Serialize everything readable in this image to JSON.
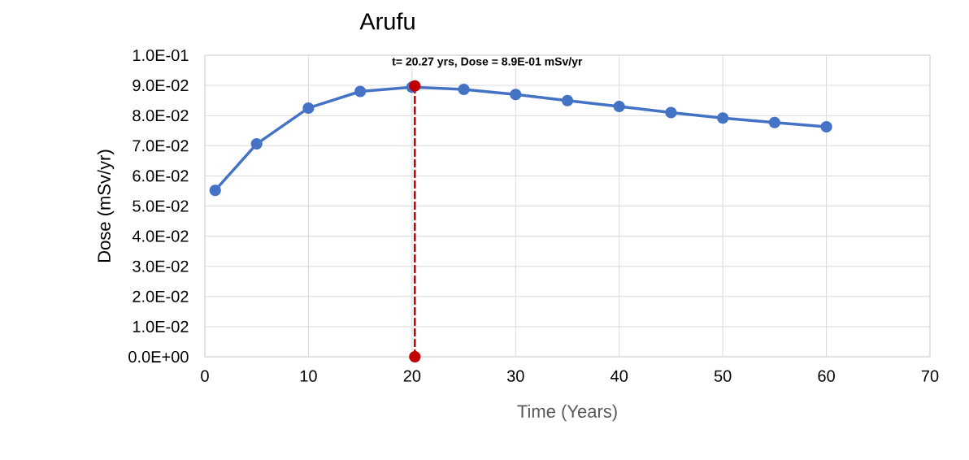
{
  "chart_data": {
    "type": "line",
    "title": "Arufu",
    "xlabel": "Time (Years)",
    "ylabel": "Dose (mSv/yr)",
    "series": [
      {
        "color": "#4472c4",
        "x": [
          1,
          5,
          10,
          15,
          20,
          25,
          30,
          35,
          40,
          45,
          50,
          55,
          60
        ],
        "values": [
          0.0552,
          0.0706,
          0.0825,
          0.088,
          0.0894,
          0.0887,
          0.087,
          0.085,
          0.083,
          0.081,
          0.0792,
          0.0777,
          0.0763
        ]
      },
      {
        "color": "#c00000",
        "x": [
          20.27,
          20.27
        ],
        "values": [
          0,
          0.0898
        ],
        "line_style": "dashed"
      }
    ],
    "annotations": [
      {
        "text": "t= 20.27 yrs, Dose = 8.9E-01 mSv/yr",
        "x": 20.27,
        "y": 0.0898
      }
    ],
    "xlim": [
      0,
      70
    ],
    "xticks": [
      0,
      10,
      20,
      30,
      40,
      50,
      60,
      70
    ],
    "ylim": [
      0,
      0.1
    ],
    "yticks": [
      {
        "value": 0,
        "label": "0.0E+00"
      },
      {
        "value": 0.01,
        "label": "1.0E-02"
      },
      {
        "value": 0.02,
        "label": "2.0E-02"
      },
      {
        "value": 0.03,
        "label": "3.0E-02"
      },
      {
        "value": 0.04,
        "label": "4.0E-02"
      },
      {
        "value": 0.05,
        "label": "5.0E-02"
      },
      {
        "value": 0.06,
        "label": "6.0E-02"
      },
      {
        "value": 0.07,
        "label": "7.0E-02"
      },
      {
        "value": 0.08,
        "label": "8.0E-02"
      },
      {
        "value": 0.09,
        "label": "9.0E-02"
      },
      {
        "value": 0.1,
        "label": "1.0E-01"
      }
    ],
    "grid": true,
    "marker": "circle"
  }
}
